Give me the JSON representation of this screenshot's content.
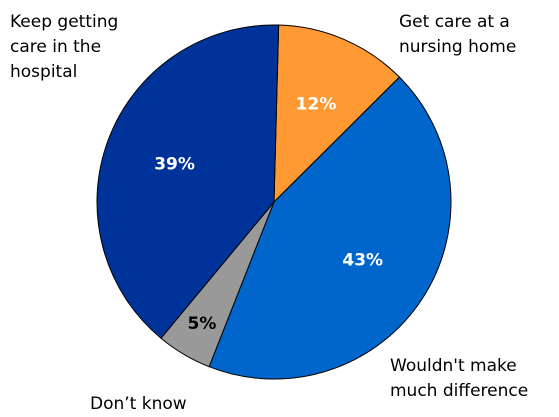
{
  "chart_data": {
    "type": "pie",
    "title": "",
    "start_angle_deg": 1.5,
    "direction": "clockwise",
    "slices": [
      {
        "label": "Get care at a nursing home",
        "value": 12,
        "value_label": "12%",
        "color": "#ff9933",
        "value_color": "#ffffff"
      },
      {
        "label": "Wouldn't make much difference",
        "value": 43,
        "value_label": "43%",
        "color": "#0066cc",
        "value_color": "#ffffff"
      },
      {
        "label": "Don’t know",
        "value": 5,
        "value_label": "5%",
        "color": "#999999",
        "value_color": "#000000"
      },
      {
        "label": "Keep getting care in the hospital",
        "value": 39,
        "value_label": "39%",
        "color": "#003399",
        "value_color": "#ffffff"
      }
    ]
  },
  "labels": {
    "nursing_home": "Get care at a\nnursing home",
    "no_difference": "Wouldn't make\nmuch difference",
    "dont_know": "Don’t know",
    "hospital": "Keep getting\ncare in the\nhospital"
  }
}
